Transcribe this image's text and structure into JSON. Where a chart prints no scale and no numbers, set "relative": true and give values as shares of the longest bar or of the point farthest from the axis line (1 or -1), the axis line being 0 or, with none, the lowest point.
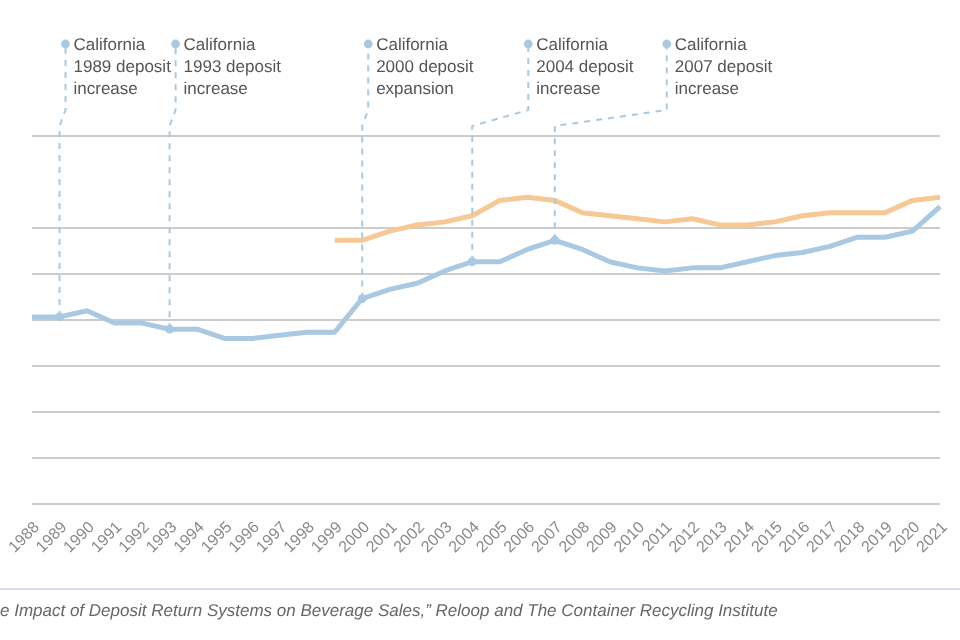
{
  "chart_data": {
    "type": "line",
    "relative": true,
    "grid": "y",
    "marker": "none",
    "line_style": "solid",
    "categories": [
      "1988",
      "1989",
      "1990",
      "1991",
      "1992",
      "1993",
      "1994",
      "1995",
      "1996",
      "1997",
      "1998",
      "1999",
      "2000",
      "2001",
      "2002",
      "2003",
      "2004",
      "2005",
      "2006",
      "2007",
      "2008",
      "2009",
      "2010",
      "2011",
      "2012",
      "2013",
      "2014",
      "2015",
      "2016",
      "2017",
      "2018",
      "2019",
      "2020",
      "2021"
    ],
    "series": [
      {
        "color": "#a9c9e2",
        "values": [
          0.61,
          0.61,
          0.63,
          0.59,
          0.59,
          0.57,
          0.57,
          0.54,
          0.54,
          0.55,
          0.56,
          0.56,
          0.67,
          0.7,
          0.72,
          0.76,
          0.79,
          0.79,
          0.83,
          0.86,
          0.83,
          0.79,
          0.77,
          0.76,
          0.77,
          0.77,
          0.79,
          0.81,
          0.82,
          0.84,
          0.87,
          0.87,
          0.89,
          0.97
        ]
      },
      {
        "color": "#f5c894",
        "values": [
          null,
          null,
          null,
          null,
          null,
          null,
          null,
          null,
          null,
          null,
          null,
          0.86,
          0.86,
          0.89,
          0.91,
          0.92,
          0.94,
          0.99,
          1,
          0.99,
          0.95,
          0.94,
          0.93,
          0.92,
          0.93,
          0.91,
          0.91,
          0.92,
          0.94,
          0.95,
          0.95,
          0.95,
          0.99,
          1
        ]
      }
    ],
    "annotations": [
      {
        "text": "California\n1989 deposit\nincrease",
        "x": "1989",
        "y": 0.61
      },
      {
        "text": "California\n1993 deposit\nincrease",
        "x": "1993",
        "y": 0.57
      },
      {
        "text": "California\n2000 deposit\nexpansion",
        "x": "2000",
        "y": 0.67
      },
      {
        "text": "California\n2004 deposit\nincrease",
        "x": "2004",
        "y": 0.79
      },
      {
        "text": "California\n2007 deposit\nincrease",
        "x": "2007",
        "y": 0.86
      },
      "e Impact of Deposit Return Systems on Beverage Sales,” Reloop and The Container Recycling Institute"
    ]
  }
}
